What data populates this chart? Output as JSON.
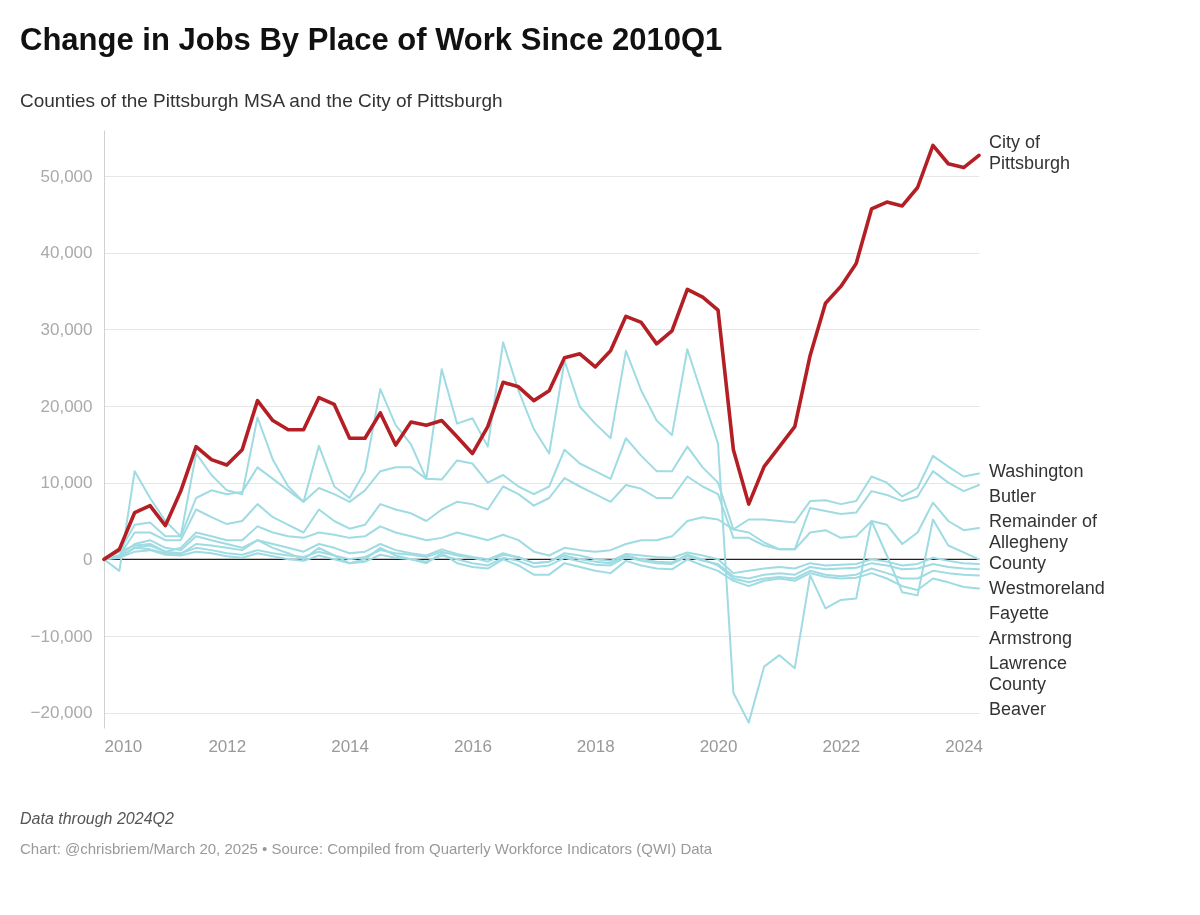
{
  "chart_data": {
    "type": "line",
    "title": "Change in Jobs By Place of Work Since 2010Q1",
    "subtitle": "Counties of the Pittsburgh MSA and the City of Pittsburgh",
    "annotations": [
      "Data through 2024Q2",
      "Chart: @chrisbriem/March 20, 2025 • Source: Compiled from Quarterly Workforce Indicators (QWI) Data"
    ],
    "x": [
      2010,
      2010.25,
      2010.5,
      2010.75,
      2011,
      2011.25,
      2011.5,
      2011.75,
      2012,
      2012.25,
      2012.5,
      2012.75,
      2013,
      2013.25,
      2013.5,
      2013.75,
      2014,
      2014.25,
      2014.5,
      2014.75,
      2015,
      2015.25,
      2015.5,
      2015.75,
      2016,
      2016.25,
      2016.5,
      2016.75,
      2017,
      2017.25,
      2017.5,
      2017.75,
      2018,
      2018.25,
      2018.5,
      2018.75,
      2019,
      2019.25,
      2019.5,
      2019.75,
      2020,
      2020.25,
      2020.5,
      2020.75,
      2021,
      2021.25,
      2021.5,
      2021.75,
      2022,
      2022.25,
      2022.5,
      2022.75,
      2023,
      2023.25,
      2023.5,
      2023.75,
      2024,
      2024.25
    ],
    "xlim": [
      2010,
      2024.25
    ],
    "xticks": [
      2010,
      2012,
      2014,
      2016,
      2018,
      2020,
      2022,
      2024
    ],
    "ylim": [
      -22000,
      56000
    ],
    "yticks": [
      {
        "value": -20000,
        "label": "−20,000"
      },
      {
        "value": -10000,
        "label": "−10,000"
      },
      0,
      {
        "value": 10000,
        "label": "10,000"
      },
      {
        "value": 20000,
        "label": "20,000"
      },
      {
        "value": 30000,
        "label": "30,000"
      },
      {
        "value": 40000,
        "label": "40,000"
      },
      {
        "value": 50000,
        "label": "50,000"
      }
    ],
    "grid": "y",
    "ref_lines": [
      {
        "axis": "y",
        "value": 0,
        "color": "#222222"
      }
    ],
    "series": [
      {
        "name": "City of Pittsburgh",
        "color": "#b31f24",
        "values": [
          0,
          1300,
          6100,
          7000,
          4400,
          8900,
          14700,
          13000,
          12300,
          14300,
          20700,
          18100,
          16900,
          16900,
          21100,
          20200,
          15800,
          15800,
          19100,
          14900,
          17900,
          17500,
          18100,
          16000,
          13800,
          17300,
          23100,
          22500,
          20700,
          22000,
          26300,
          26800,
          25100,
          27200,
          31700,
          30900,
          28100,
          29800,
          35200,
          34200,
          32500,
          14300,
          7200,
          12100,
          14700,
          17300,
          26600,
          33400,
          35600,
          38600,
          45700,
          46600,
          46100,
          48500,
          54000,
          51600,
          51100,
          52700
        ]
      },
      {
        "name": "Washington",
        "color": "#9fdbe3",
        "values": [
          0,
          1000,
          4500,
          4800,
          3000,
          3000,
          8000,
          9000,
          8500,
          8800,
          12000,
          10500,
          9000,
          7500,
          9300,
          8500,
          7500,
          9000,
          11500,
          12000,
          12000,
          10500,
          10400,
          12900,
          12500,
          10000,
          11000,
          9500,
          8500,
          9500,
          14300,
          12500,
          11500,
          10500,
          15800,
          13500,
          11500,
          11500,
          14700,
          12000,
          10000,
          3900,
          5200,
          5200,
          5000,
          4800,
          7600,
          7700,
          7200,
          7600,
          10800,
          10000,
          8200,
          9300,
          13500,
          12100,
          10800,
          11200
        ]
      },
      {
        "name": "Butler",
        "color": "#9fdbe3",
        "values": [
          0,
          500,
          3500,
          3500,
          2500,
          2500,
          6500,
          5500,
          4600,
          5000,
          7200,
          5500,
          4500,
          3500,
          6500,
          5000,
          4000,
          4500,
          7200,
          6500,
          6000,
          5000,
          6500,
          7500,
          7200,
          6500,
          9500,
          8500,
          7000,
          8000,
          10600,
          9500,
          8500,
          7500,
          9700,
          9200,
          8000,
          8000,
          10800,
          9500,
          8500,
          2800,
          2800,
          1800,
          1300,
          1300,
          6700,
          6300,
          5900,
          6100,
          8900,
          8400,
          7600,
          8200,
          11500,
          10000,
          8900,
          9700
        ]
      },
      {
        "name": "Remainder of Allegheny County",
        "color": "#9fdbe3",
        "values": [
          0,
          1000,
          1800,
          2000,
          1000,
          1500,
          3500,
          3000,
          2500,
          2500,
          4300,
          3500,
          3000,
          2800,
          3500,
          3200,
          2800,
          3000,
          4300,
          3500,
          3000,
          2500,
          2800,
          3500,
          3000,
          2500,
          3200,
          2500,
          1000,
          500,
          1500,
          1200,
          1000,
          1200,
          2000,
          2500,
          2500,
          3000,
          5000,
          5500,
          5200,
          3900,
          3500,
          2200,
          1300,
          1300,
          3500,
          3800,
          2800,
          3000,
          5000,
          4500,
          2000,
          3500,
          7400,
          5000,
          3800,
          4100
        ]
      },
      {
        "name": "Westmoreland",
        "color": "#9fdbe3",
        "values": [
          0,
          -1500,
          11500,
          8000,
          5000,
          3000,
          13800,
          11000,
          9000,
          8500,
          18500,
          13000,
          9500,
          7500,
          14800,
          9500,
          8000,
          11500,
          22200,
          17500,
          15000,
          10500,
          24800,
          17700,
          18400,
          14700,
          28300,
          22000,
          17000,
          13800,
          25900,
          19900,
          17700,
          15800,
          27200,
          22000,
          18100,
          16200,
          27400,
          21200,
          15100,
          -17400,
          -21300,
          -14000,
          -12500,
          -14200,
          -2100,
          -6400,
          -5300,
          -5100,
          5000,
          500,
          -4300,
          -4700,
          5200,
          1800,
          900,
          0
        ]
      },
      {
        "name": "Fayette",
        "color": "#9fdbe3",
        "values": [
          0,
          300,
          1500,
          1800,
          1000,
          800,
          1500,
          1200,
          800,
          600,
          1200,
          800,
          500,
          300,
          1000,
          500,
          0,
          300,
          1200,
          800,
          600,
          300,
          1000,
          500,
          200,
          -300,
          600,
          300,
          -500,
          -300,
          800,
          500,
          0,
          -200,
          700,
          500,
          300,
          200,
          900,
          500,
          0,
          -1800,
          -1500,
          -1200,
          -1000,
          -1200,
          -500,
          -800,
          -700,
          -600,
          0,
          -300,
          -800,
          -600,
          200,
          -200,
          -500,
          -600
        ]
      },
      {
        "name": "Armstrong",
        "color": "#9fdbe3",
        "values": [
          0,
          200,
          1000,
          1200,
          600,
          500,
          1000,
          800,
          400,
          200,
          800,
          400,
          0,
          -200,
          500,
          0,
          -500,
          -300,
          600,
          200,
          0,
          -300,
          500,
          0,
          -500,
          -800,
          200,
          -200,
          -1000,
          -800,
          200,
          -300,
          -700,
          -800,
          300,
          -200,
          -500,
          -600,
          400,
          -200,
          -600,
          -2200,
          -2500,
          -2000,
          -1800,
          -2000,
          -1000,
          -1300,
          -1200,
          -1100,
          -500,
          -800,
          -1300,
          -1200,
          -600,
          -1000,
          -1200,
          -1300
        ]
      },
      {
        "name": "Lawrence County",
        "color": "#9fdbe3",
        "values": [
          0,
          300,
          1500,
          1300,
          800,
          700,
          2000,
          1800,
          1500,
          1200,
          2500,
          2000,
          1500,
          1000,
          2000,
          1500,
          800,
          1000,
          2000,
          1200,
          800,
          500,
          1300,
          700,
          300,
          0,
          800,
          200,
          -500,
          -300,
          500,
          0,
          -300,
          -500,
          500,
          0,
          -300,
          -400,
          600,
          0,
          -800,
          -2500,
          -3000,
          -2500,
          -2300,
          -2500,
          -1500,
          -2000,
          -2200,
          -2000,
          -1200,
          -1800,
          -2500,
          -2500,
          -1500,
          -1800,
          -2000,
          -2100
        ]
      },
      {
        "name": "Beaver",
        "color": "#9fdbe3",
        "values": [
          0,
          500,
          2000,
          2500,
          1500,
          1200,
          3000,
          2500,
          2000,
          1500,
          2500,
          1500,
          800,
          0,
          1500,
          500,
          -500,
          0,
          1500,
          500,
          0,
          -500,
          800,
          -500,
          -1000,
          -1200,
          0,
          -800,
          -2000,
          -2000,
          -500,
          -1000,
          -1500,
          -1800,
          -200,
          -800,
          -1200,
          -1300,
          0,
          -800,
          -1500,
          -2800,
          -3500,
          -2800,
          -2500,
          -2800,
          -1800,
          -2300,
          -2500,
          -2400,
          -1800,
          -2500,
          -3500,
          -4000,
          -2500,
          -3000,
          -3600,
          -3800
        ]
      }
    ]
  }
}
